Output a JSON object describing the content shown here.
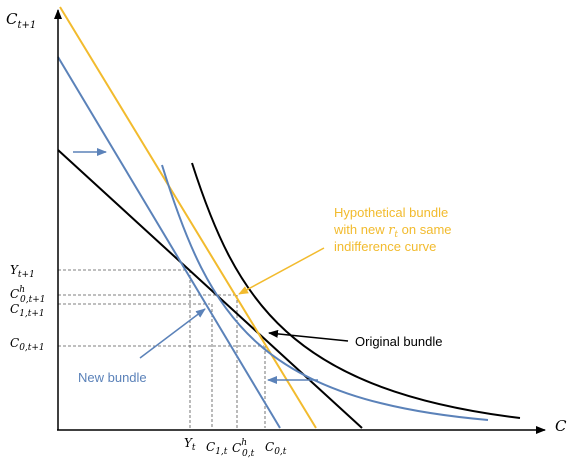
{
  "axes": {
    "x_label": "C",
    "y_label": {
      "base": "C",
      "sub": "t+1"
    }
  },
  "y_ticks": [
    {
      "base": "Y",
      "sub": "t+1",
      "sup": ""
    },
    {
      "base": "C",
      "sub": "0,t+1",
      "sup": "h"
    },
    {
      "base": "C",
      "sub": "1,t+1",
      "sup": ""
    },
    {
      "base": "C",
      "sub": "0,t+1",
      "sup": ""
    }
  ],
  "x_ticks": [
    {
      "base": "Y",
      "sub": "t",
      "sup": ""
    },
    {
      "base": "C",
      "sub": "1,t",
      "sup": ""
    },
    {
      "base": "C",
      "sub": "0,t",
      "sup": "h"
    },
    {
      "base": "C",
      "sub": "0,t",
      "sup": ""
    }
  ],
  "annotations": {
    "hypothetical": {
      "line1": "Hypothetical bundle",
      "line2_prefix": "with new ",
      "line2_var": "r",
      "line2_sub": "t",
      "line2_suffix": " on same",
      "line3": "indifference curve"
    },
    "original": "Original bundle",
    "new_bundle": "New bundle"
  },
  "colors": {
    "black": "#000000",
    "blue": "#5b82b9",
    "orange": "#f2bb2e",
    "dash": "#555555"
  }
}
